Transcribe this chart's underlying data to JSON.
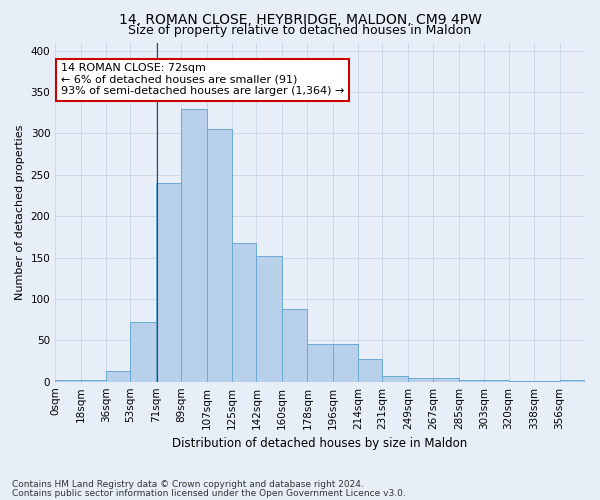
{
  "title1": "14, ROMAN CLOSE, HEYBRIDGE, MALDON, CM9 4PW",
  "title2": "Size of property relative to detached houses in Maldon",
  "xlabel": "Distribution of detached houses by size in Maldon",
  "ylabel": "Number of detached properties",
  "annotation_line1": "14 ROMAN CLOSE: 72sqm",
  "annotation_line2": "← 6% of detached houses are smaller (91)",
  "annotation_line3": "93% of semi-detached houses are larger (1,364) →",
  "property_size": 72,
  "bar_labels": [
    "0sqm",
    "18sqm",
    "36sqm",
    "53sqm",
    "71sqm",
    "89sqm",
    "107sqm",
    "125sqm",
    "142sqm",
    "160sqm",
    "178sqm",
    "196sqm",
    "214sqm",
    "231sqm",
    "249sqm",
    "267sqm",
    "285sqm",
    "303sqm",
    "320sqm",
    "338sqm",
    "356sqm"
  ],
  "bar_values": [
    2,
    2,
    13,
    72,
    240,
    330,
    305,
    168,
    152,
    88,
    46,
    46,
    27,
    7,
    5,
    4,
    2,
    2,
    1,
    1,
    2
  ],
  "bar_edges": [
    0,
    18,
    36,
    53,
    71,
    89,
    107,
    125,
    142,
    160,
    178,
    196,
    214,
    231,
    249,
    267,
    285,
    303,
    320,
    338,
    356,
    374
  ],
  "bar_color": "#b8d0ea",
  "bar_edge_color": "#6aaad4",
  "grid_color": "#c8d4e8",
  "background_color": "#e8eef8",
  "plot_bg_color": "#e8eef8",
  "ylim": [
    0,
    410
  ],
  "yticks": [
    0,
    50,
    100,
    150,
    200,
    250,
    300,
    350,
    400
  ],
  "annotation_box_color": "#ffffff",
  "annotation_border_color": "#cc0000",
  "footer1": "Contains HM Land Registry data © Crown copyright and database right 2024.",
  "footer2": "Contains public sector information licensed under the Open Government Licence v3.0.",
  "title1_fontsize": 10,
  "title2_fontsize": 9,
  "xlabel_fontsize": 8.5,
  "ylabel_fontsize": 8,
  "tick_fontsize": 7.5,
  "annotation_fontsize": 8,
  "footer_fontsize": 6.5
}
